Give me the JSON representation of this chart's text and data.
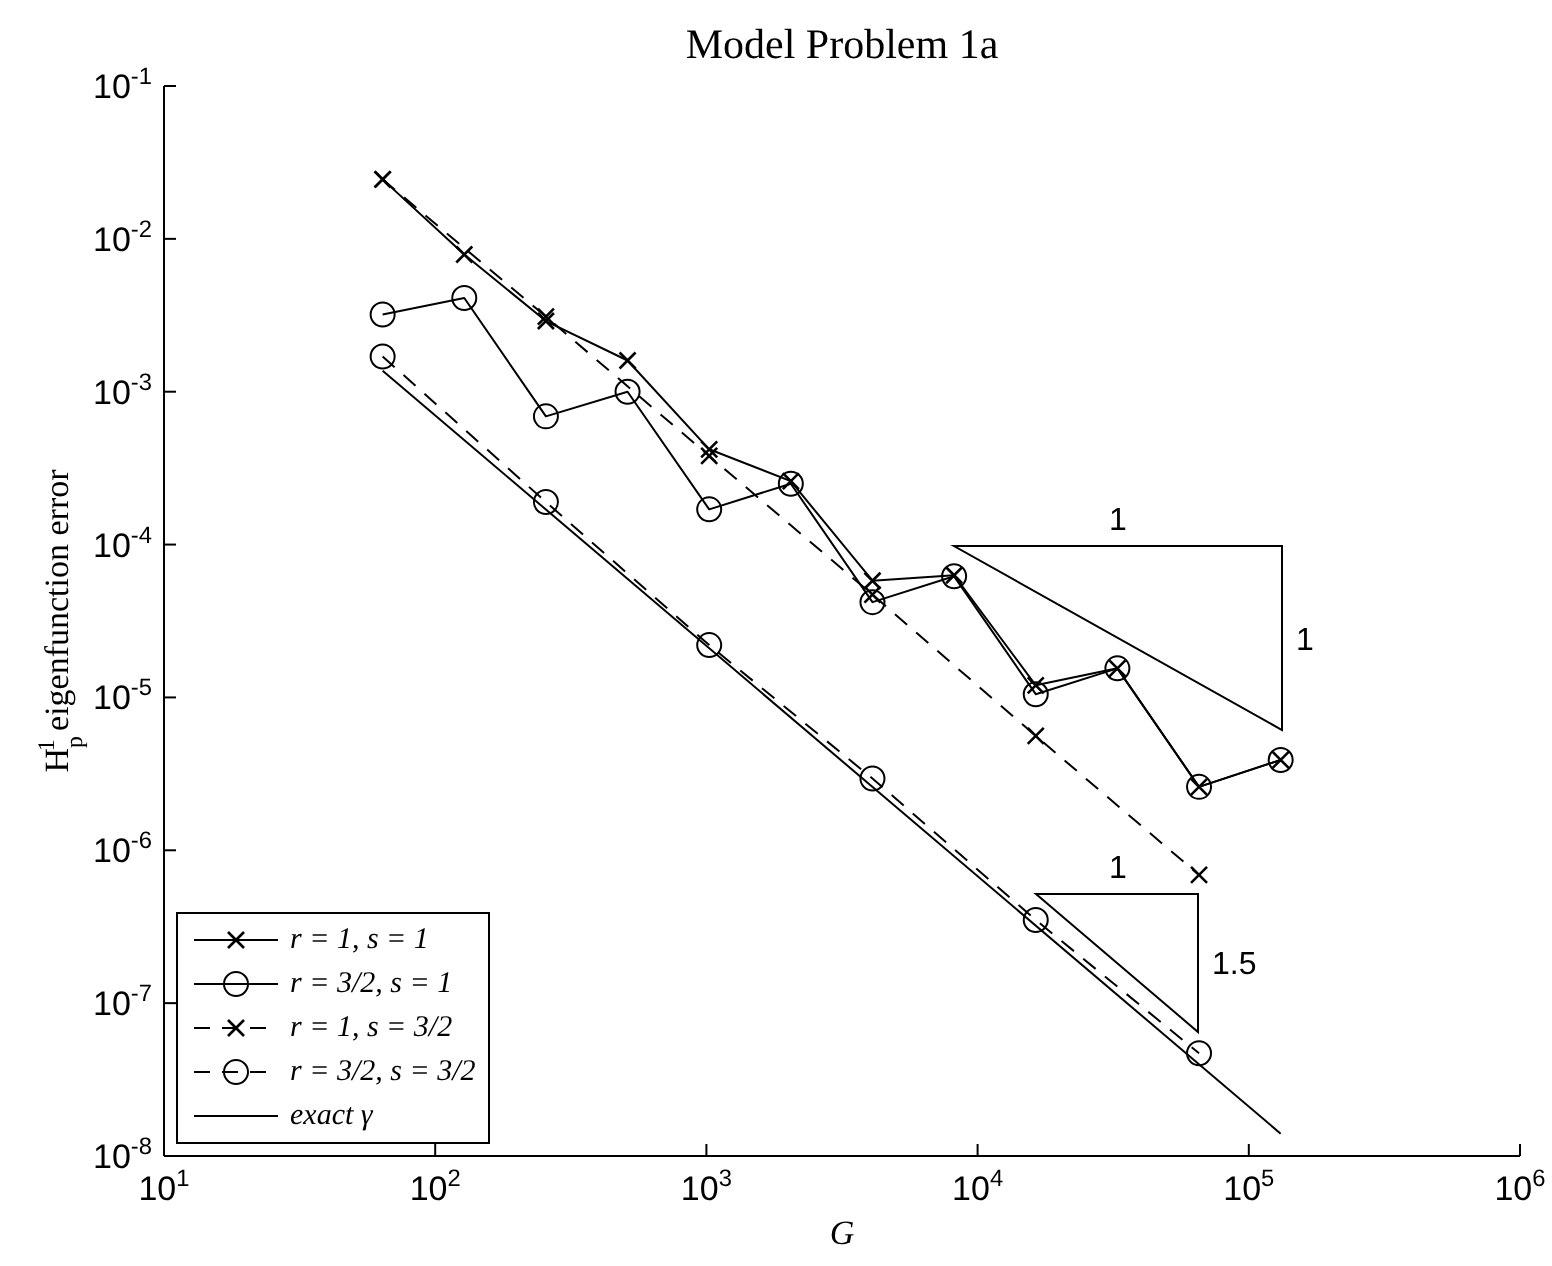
{
  "chart_data": {
    "type": "line",
    "title": "Model Problem 1a",
    "xlabel": "G",
    "ylabel": "H$_{p}$$^{1}$ eigenfunction error",
    "log": "xy",
    "grid": false,
    "legend": "bottom left",
    "xlim": [
      10,
      1000000
    ],
    "xticks": [
      {
        "value": 10,
        "label": "10$^{1}$"
      },
      {
        "value": 100,
        "label": "10$^{2}$"
      },
      {
        "value": 1000,
        "label": "10$^{3}$"
      },
      {
        "value": 10000,
        "label": "10$^{4}$"
      },
      {
        "value": 100000,
        "label": "10$^{5}$"
      },
      {
        "value": 1000000,
        "label": "10$^{6}$"
      }
    ],
    "ylim": [
      1e-08,
      0.1
    ],
    "yticks": [
      {
        "value": 1e-08,
        "label": "10$^{-8}$"
      },
      {
        "value": 1e-07,
        "label": "10$^{-7}$"
      },
      {
        "value": 1e-06,
        "label": "10$^{-6}$"
      },
      {
        "value": 1e-05,
        "label": "10$^{-5}$"
      },
      {
        "value": 0.0001,
        "label": "10$^{-4}$"
      },
      {
        "value": 0.001,
        "label": "10$^{-3}$"
      },
      {
        "value": 0.01,
        "label": "10$^{-2}$"
      },
      {
        "value": 0.1,
        "label": "10$^{-1}$"
      }
    ],
    "series": [
      {
        "name": "r = 1, s = 1",
        "color": "#000000",
        "marker": "cross",
        "line_style": "solid",
        "x": [
          64,
          128,
          256,
          512,
          1024,
          2048,
          4096,
          8192,
          16384,
          32768,
          65536,
          131072
        ],
        "values": [
          0.0245,
          0.0079,
          0.0029,
          0.0016,
          0.00042,
          0.00026,
          5.8e-05,
          6.3e-05,
          1.2e-05,
          1.55e-05,
          2.6e-06,
          3.9e-06
        ]
      },
      {
        "name": "r = 3/2, s = 1",
        "color": "#000000",
        "marker": "circle",
        "line_style": "solid",
        "x": [
          64,
          128,
          256,
          512,
          1024,
          2048,
          4096,
          8192,
          16384,
          32768,
          65536,
          131072
        ],
        "values": [
          0.0032,
          0.0041,
          0.00069,
          0.001,
          0.00017,
          0.00025,
          4.2e-05,
          6.2e-05,
          1.05e-05,
          1.55e-05,
          2.6e-06,
          3.9e-06
        ]
      },
      {
        "name": "r = 1, s = 3/2",
        "color": "#000000",
        "marker": "cross",
        "line_style": "dashed",
        "x": [
          64,
          256,
          1024,
          4096,
          16384,
          65536
        ],
        "values": [
          0.0245,
          0.0031,
          0.00038,
          4.7e-05,
          5.6e-06,
          6.9e-07
        ]
      },
      {
        "name": "r = 3/2, s = 3/2",
        "color": "#000000",
        "marker": "circle",
        "line_style": "dashed",
        "x": [
          64,
          256,
          1024,
          4096,
          16384,
          65536
        ],
        "values": [
          0.0017,
          0.00019,
          2.2e-05,
          2.95e-06,
          3.5e-07,
          4.7e-08
        ]
      },
      {
        "name": "exact γ",
        "color": "#000000",
        "marker": "none",
        "line_style": "solid",
        "x": [
          64,
          131072
        ],
        "values": [
          0.00137,
          1.4e-08
        ]
      }
    ],
    "annotations": [
      "1",
      "1",
      "1",
      "1.5"
    ]
  }
}
